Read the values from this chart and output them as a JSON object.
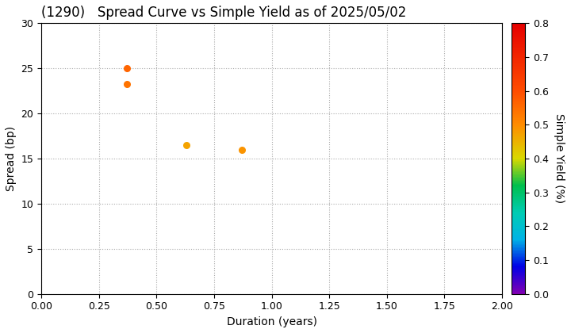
{
  "title": "(1290)   Spread Curve vs Simple Yield as of 2025/05/02",
  "xlabel": "Duration (years)",
  "ylabel": "Spread (bp)",
  "colorbar_label": "Simple Yield (%)",
  "xlim": [
    0.0,
    2.0
  ],
  "ylim": [
    0,
    30
  ],
  "xticks": [
    0.0,
    0.25,
    0.5,
    0.75,
    1.0,
    1.25,
    1.5,
    1.75,
    2.0
  ],
  "yticks": [
    0,
    5,
    10,
    15,
    20,
    25,
    30
  ],
  "colorbar_min": 0.0,
  "colorbar_max": 0.8,
  "colorbar_ticks": [
    0.0,
    0.1,
    0.2,
    0.3,
    0.4,
    0.5,
    0.6,
    0.7,
    0.8
  ],
  "points": [
    {
      "duration": 0.37,
      "spread": 25.0,
      "simple_yield": 0.56
    },
    {
      "duration": 0.37,
      "spread": 23.3,
      "simple_yield": 0.54
    },
    {
      "duration": 0.63,
      "spread": 16.5,
      "simple_yield": 0.47
    },
    {
      "duration": 0.87,
      "spread": 16.0,
      "simple_yield": 0.49
    }
  ],
  "marker_size": 30,
  "background_color": "#ffffff",
  "grid_color": "#aaaaaa",
  "title_fontsize": 12,
  "axis_label_fontsize": 10,
  "tick_fontsize": 9,
  "figsize": [
    7.2,
    4.2
  ],
  "dpi": 100
}
